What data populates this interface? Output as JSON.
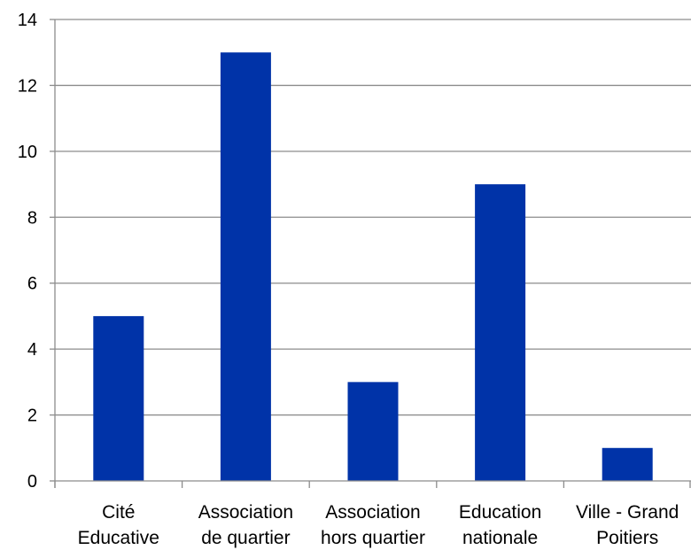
{
  "chart_data": {
    "type": "bar",
    "categories": [
      [
        "Cité",
        "Educative"
      ],
      [
        "Association",
        "de quartier"
      ],
      [
        "Association",
        "hors quartier"
      ],
      [
        "Education",
        "nationale"
      ],
      [
        "Ville - Grand",
        "Poitiers"
      ]
    ],
    "values": [
      5,
      13,
      3,
      9,
      1
    ],
    "title": "",
    "xlabel": "",
    "ylabel": "",
    "ylim": [
      0,
      14
    ],
    "yticks": [
      0,
      2,
      4,
      6,
      8,
      10,
      12,
      14
    ],
    "grid": true,
    "legend": "none",
    "colors": {
      "bar": "#0033A8",
      "grid": "#8C8C8C",
      "axis": "#8C8C8C"
    }
  }
}
